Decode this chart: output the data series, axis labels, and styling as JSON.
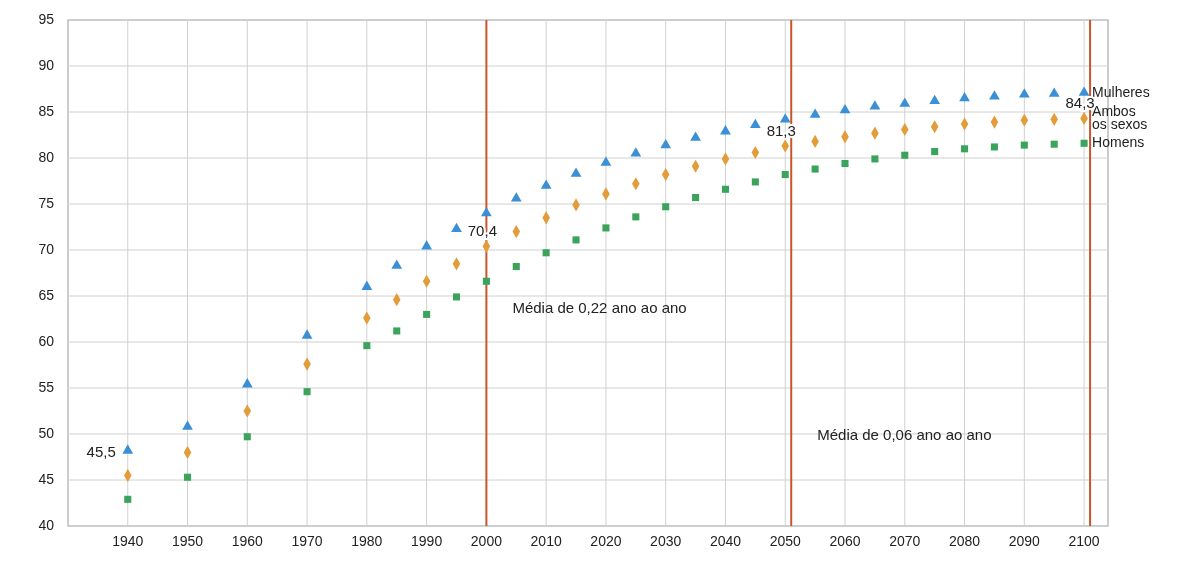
{
  "chart_data": {
    "type": "scatter",
    "xlim": [
      1930,
      2104
    ],
    "ylim": [
      40,
      95
    ],
    "xticks": [
      1940,
      1950,
      1960,
      1970,
      1980,
      1990,
      2000,
      2010,
      2020,
      2030,
      2040,
      2050,
      2060,
      2070,
      2080,
      2090,
      2100
    ],
    "yticks": [
      40,
      45,
      50,
      55,
      60,
      65,
      70,
      75,
      80,
      85,
      90,
      95
    ],
    "grid": true,
    "series": [
      {
        "name": "Mulheres",
        "color": "#3b8fd4",
        "marker": "triangle",
        "x": [
          1940,
          1950,
          1960,
          1970,
          1980,
          1985,
          1990,
          1995,
          2000,
          2005,
          2010,
          2015,
          2020,
          2025,
          2030,
          2035,
          2040,
          2045,
          2050,
          2055,
          2060,
          2065,
          2070,
          2075,
          2080,
          2085,
          2090,
          2095,
          2100
        ],
        "values": [
          48.2,
          50.8,
          55.4,
          60.7,
          66.0,
          68.3,
          70.4,
          72.3,
          74.0,
          75.6,
          77.0,
          78.3,
          79.5,
          80.5,
          81.4,
          82.2,
          82.9,
          83.6,
          84.2,
          84.7,
          85.2,
          85.6,
          85.9,
          86.2,
          86.5,
          86.7,
          86.9,
          87.0,
          87.1
        ]
      },
      {
        "name": "Ambos os sexos",
        "color": "#e39c3a",
        "marker": "diamond",
        "x": [
          1940,
          1950,
          1960,
          1970,
          1980,
          1985,
          1990,
          1995,
          2000,
          2005,
          2010,
          2015,
          2020,
          2025,
          2030,
          2035,
          2040,
          2045,
          2050,
          2055,
          2060,
          2065,
          2070,
          2075,
          2080,
          2085,
          2090,
          2095,
          2100
        ],
        "values": [
          45.5,
          48.0,
          52.5,
          57.6,
          62.6,
          64.6,
          66.6,
          68.5,
          70.4,
          72.0,
          73.5,
          74.9,
          76.1,
          77.2,
          78.2,
          79.1,
          79.9,
          80.6,
          81.3,
          81.8,
          82.3,
          82.7,
          83.1,
          83.4,
          83.7,
          83.9,
          84.1,
          84.2,
          84.3
        ]
      },
      {
        "name": "Homens",
        "color": "#3aa45c",
        "marker": "square",
        "x": [
          1940,
          1950,
          1960,
          1970,
          1980,
          1985,
          1990,
          1995,
          2000,
          2005,
          2010,
          2015,
          2020,
          2025,
          2030,
          2035,
          2040,
          2045,
          2050,
          2055,
          2060,
          2065,
          2070,
          2075,
          2080,
          2085,
          2090,
          2095,
          2100
        ],
        "values": [
          42.9,
          45.3,
          49.7,
          54.6,
          59.6,
          61.2,
          63.0,
          64.9,
          66.6,
          68.2,
          69.7,
          71.1,
          72.4,
          73.6,
          74.7,
          75.7,
          76.6,
          77.4,
          78.2,
          78.8,
          79.4,
          79.9,
          80.3,
          80.7,
          81.0,
          81.2,
          81.4,
          81.5,
          81.6
        ]
      }
    ],
    "ref_lines": [
      {
        "axis": "x",
        "value": 2000,
        "color": "#c8562a"
      },
      {
        "axis": "x",
        "value": 2051,
        "color": "#c8562a"
      },
      {
        "axis": "x",
        "value": 2101,
        "color": "#c8562a"
      }
    ],
    "annotations": [
      {
        "text": "45,5",
        "x": 1940,
        "y": 45.5
      },
      {
        "text": "70,4",
        "x": 2000,
        "y": 70.4
      },
      {
        "text": "81,3",
        "x": 2050,
        "y": 81.3
      },
      {
        "text": "84,3",
        "x": 2100,
        "y": 84.3
      },
      "Média de 0,22 ano ao ano",
      "Média de 0,06 ano ao ano"
    ]
  }
}
